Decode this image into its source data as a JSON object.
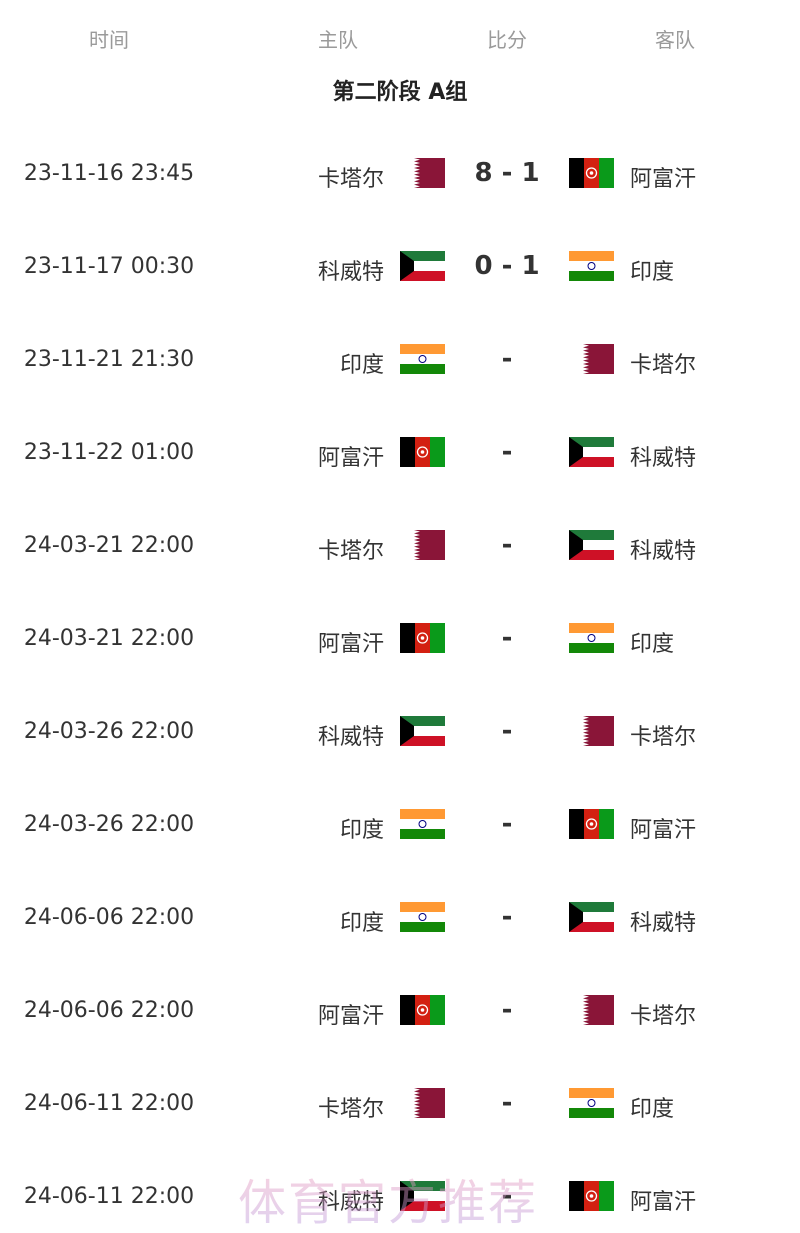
{
  "header": {
    "time": "时间",
    "home": "主队",
    "score": "比分",
    "away": "客队"
  },
  "group_title": "第二阶段 A组",
  "flag_colors": {
    "qatar": "#8a1538",
    "kuwait_green": "#1f7a3a",
    "kuwait_red": "#ce1126",
    "india_saffron": "#ff9933",
    "india_green": "#138808",
    "india_wheel": "#000080",
    "afghan_red": "#d32011",
    "afghan_green": "#0a9a1a"
  },
  "matches": [
    {
      "time": "23-11-16 23:45",
      "home": "卡塔尔",
      "home_flag": "qatar",
      "score": "8 - 1",
      "away": "阿富汗",
      "away_flag": "afghanistan"
    },
    {
      "time": "23-11-17 00:30",
      "home": "科威特",
      "home_flag": "kuwait",
      "score": "0 - 1",
      "away": "印度",
      "away_flag": "india"
    },
    {
      "time": "23-11-21 21:30",
      "home": "印度",
      "home_flag": "india",
      "score": "-",
      "away": "卡塔尔",
      "away_flag": "qatar"
    },
    {
      "time": "23-11-22 01:00",
      "home": "阿富汗",
      "home_flag": "afghanistan",
      "score": "-",
      "away": "科威特",
      "away_flag": "kuwait"
    },
    {
      "time": "24-03-21 22:00",
      "home": "卡塔尔",
      "home_flag": "qatar",
      "score": "-",
      "away": "科威特",
      "away_flag": "kuwait"
    },
    {
      "time": "24-03-21 22:00",
      "home": "阿富汗",
      "home_flag": "afghanistan",
      "score": "-",
      "away": "印度",
      "away_flag": "india"
    },
    {
      "time": "24-03-26 22:00",
      "home": "科威特",
      "home_flag": "kuwait",
      "score": "-",
      "away": "卡塔尔",
      "away_flag": "qatar"
    },
    {
      "time": "24-03-26 22:00",
      "home": "印度",
      "home_flag": "india",
      "score": "-",
      "away": "阿富汗",
      "away_flag": "afghanistan"
    },
    {
      "time": "24-06-06 22:00",
      "home": "印度",
      "home_flag": "india",
      "score": "-",
      "away": "科威特",
      "away_flag": "kuwait"
    },
    {
      "time": "24-06-06 22:00",
      "home": "阿富汗",
      "home_flag": "afghanistan",
      "score": "-",
      "away": "卡塔尔",
      "away_flag": "qatar"
    },
    {
      "time": "24-06-11 22:00",
      "home": "卡塔尔",
      "home_flag": "qatar",
      "score": "-",
      "away": "印度",
      "away_flag": "india"
    },
    {
      "time": "24-06-11 22:00",
      "home": "科威特",
      "home_flag": "kuwait",
      "score": "-",
      "away": "阿富汗",
      "away_flag": "afghanistan"
    }
  ],
  "watermark": "体育官方推荐"
}
